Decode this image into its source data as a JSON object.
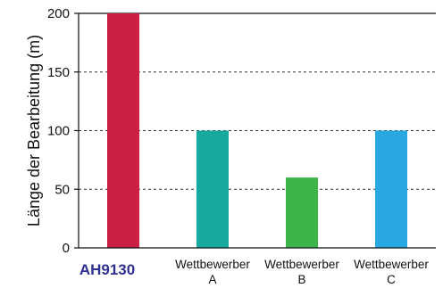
{
  "chart_data": {
    "type": "bar",
    "categories": [
      "AH9130",
      "Wettbewerber A",
      "Wettbewerber B",
      "Wettbewerber C"
    ],
    "category_lines": [
      [
        "AH9130"
      ],
      [
        "Wettbewerber",
        "A"
      ],
      [
        "Wettbewerber",
        "B"
      ],
      [
        "Wettbewerber",
        "C"
      ]
    ],
    "values": [
      200,
      100,
      60,
      100
    ],
    "colors": [
      "#cc1f44",
      "#17a9a0",
      "#3bb54a",
      "#27a8e0"
    ],
    "highlight_category_color": "#2e3192",
    "ylabel": "Länge der Bearbeitung (m)",
    "xlabel": "",
    "ylim": [
      0,
      200
    ],
    "yticks": [
      0,
      50,
      100,
      150,
      200
    ],
    "grid": "horizontal dashed",
    "legend": "none"
  }
}
